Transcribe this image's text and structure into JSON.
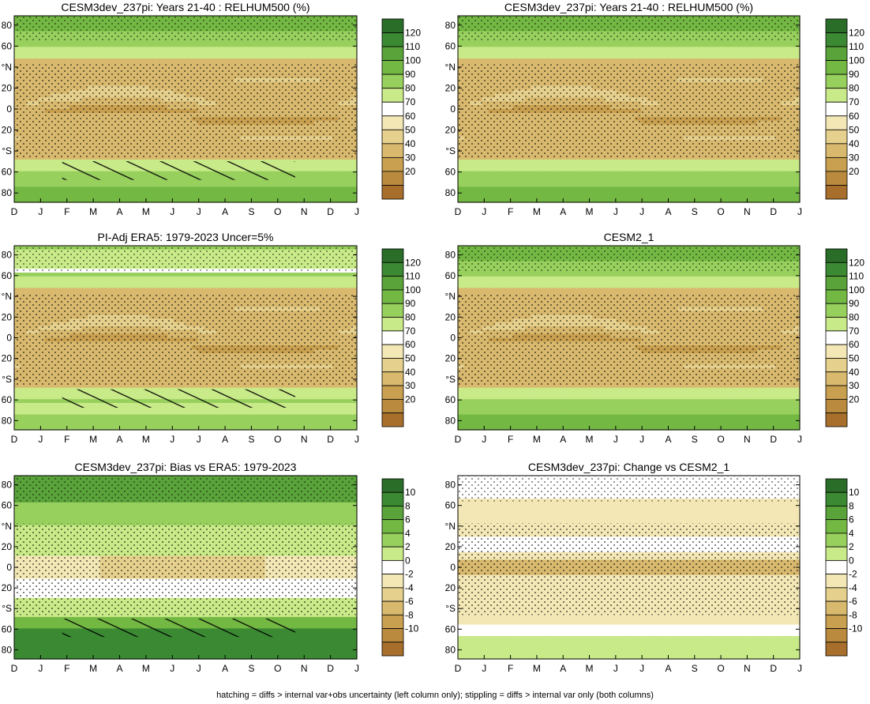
{
  "figure_caption": "hatching = diffs > internal var+obs uncertainty (left column only); stippling = diffs > internal var only (both columns)",
  "colors": {
    "brown_dark": "#a86f2c",
    "brown_mid": "#c89a45",
    "tan": "#e8d49a",
    "white": "#ffffff",
    "green_light": "#d8ef9e",
    "green_mid": "#8cc64c",
    "green_dark": "#2a6d28"
  },
  "icons": {
    "stippling": "dot-pattern",
    "hatching": "diagonal-line-pattern"
  },
  "chart_data": [
    {
      "type": "heatmap",
      "title": "CESM3dev_237pi: Years 21-40 : RELHUM500 (%)",
      "x": [
        "D",
        "J",
        "F",
        "M",
        "A",
        "M",
        "J",
        "J",
        "A",
        "S",
        "O",
        "N",
        "D",
        "J"
      ],
      "y_ticks": [
        "80",
        "60",
        "°N",
        "20",
        "0",
        "20",
        "°S",
        "60",
        "80"
      ],
      "colorbar": {
        "levels": [
          "120",
          "110",
          "100",
          "90",
          "80",
          "70",
          "60",
          "50",
          "40",
          "30",
          "20"
        ]
      },
      "field": "abs_relhum",
      "stippling": true,
      "hatching": true
    },
    {
      "type": "heatmap",
      "title": "CESM3dev_237pi: Years 21-40 : RELHUM500 (%)",
      "x": [
        "D",
        "J",
        "F",
        "M",
        "A",
        "M",
        "J",
        "J",
        "A",
        "S",
        "O",
        "N",
        "D",
        "J"
      ],
      "y_ticks": [
        "80",
        "60",
        "°N",
        "20",
        "0",
        "20",
        "°S",
        "60",
        "80"
      ],
      "colorbar": {
        "levels": [
          "120",
          "110",
          "100",
          "90",
          "80",
          "70",
          "60",
          "50",
          "40",
          "30",
          "20"
        ]
      },
      "field": "abs_relhum",
      "stippling": true,
      "hatching": false
    },
    {
      "type": "heatmap",
      "title": "PI-Adj ERA5: 1979-2023 Uncer=5%",
      "x": [
        "D",
        "J",
        "F",
        "M",
        "A",
        "M",
        "J",
        "J",
        "A",
        "S",
        "O",
        "N",
        "D",
        "J"
      ],
      "y_ticks": [
        "80",
        "60",
        "°N",
        "20",
        "0",
        "20",
        "°S",
        "60",
        "80"
      ],
      "colorbar": {
        "levels": [
          "120",
          "110",
          "100",
          "90",
          "80",
          "70",
          "60",
          "50",
          "40",
          "30",
          "20"
        ]
      },
      "field": "abs_relhum_obs",
      "stippling": true,
      "hatching": true
    },
    {
      "type": "heatmap",
      "title": "CESM2_1",
      "x": [
        "D",
        "J",
        "F",
        "M",
        "A",
        "M",
        "J",
        "J",
        "A",
        "S",
        "O",
        "N",
        "D",
        "J"
      ],
      "y_ticks": [
        "80",
        "60",
        "°N",
        "20",
        "0",
        "20",
        "°S",
        "60",
        "80"
      ],
      "colorbar": {
        "levels": [
          "120",
          "110",
          "100",
          "90",
          "80",
          "70",
          "60",
          "50",
          "40",
          "30",
          "20"
        ]
      },
      "field": "abs_relhum",
      "stippling": true,
      "hatching": false
    },
    {
      "type": "heatmap",
      "title": "CESM3dev_237pi: Bias vs ERA5: 1979-2023",
      "x": [
        "D",
        "J",
        "F",
        "M",
        "A",
        "M",
        "J",
        "J",
        "A",
        "S",
        "O",
        "N",
        "D",
        "J"
      ],
      "y_ticks": [
        "80",
        "60",
        "°N",
        "20",
        "0",
        "20",
        "°S",
        "60",
        "80"
      ],
      "colorbar": {
        "levels": [
          "10",
          "8",
          "6",
          "4",
          "2",
          "0",
          "-2",
          "-4",
          "-6",
          "-8",
          "-10"
        ]
      },
      "field": "bias",
      "stippling": true,
      "hatching": true
    },
    {
      "type": "heatmap",
      "title": "CESM3dev_237pi: Change vs CESM2_1",
      "x": [
        "D",
        "J",
        "F",
        "M",
        "A",
        "M",
        "J",
        "J",
        "A",
        "S",
        "O",
        "N",
        "D",
        "J"
      ],
      "y_ticks": [
        "80",
        "60",
        "°N",
        "20",
        "0",
        "20",
        "°S",
        "60",
        "80"
      ],
      "colorbar": {
        "levels": [
          "10",
          "8",
          "6",
          "4",
          "2",
          "0",
          "-2",
          "-4",
          "-6",
          "-8",
          "-10"
        ]
      },
      "field": "change",
      "stippling": true,
      "hatching": false
    }
  ]
}
